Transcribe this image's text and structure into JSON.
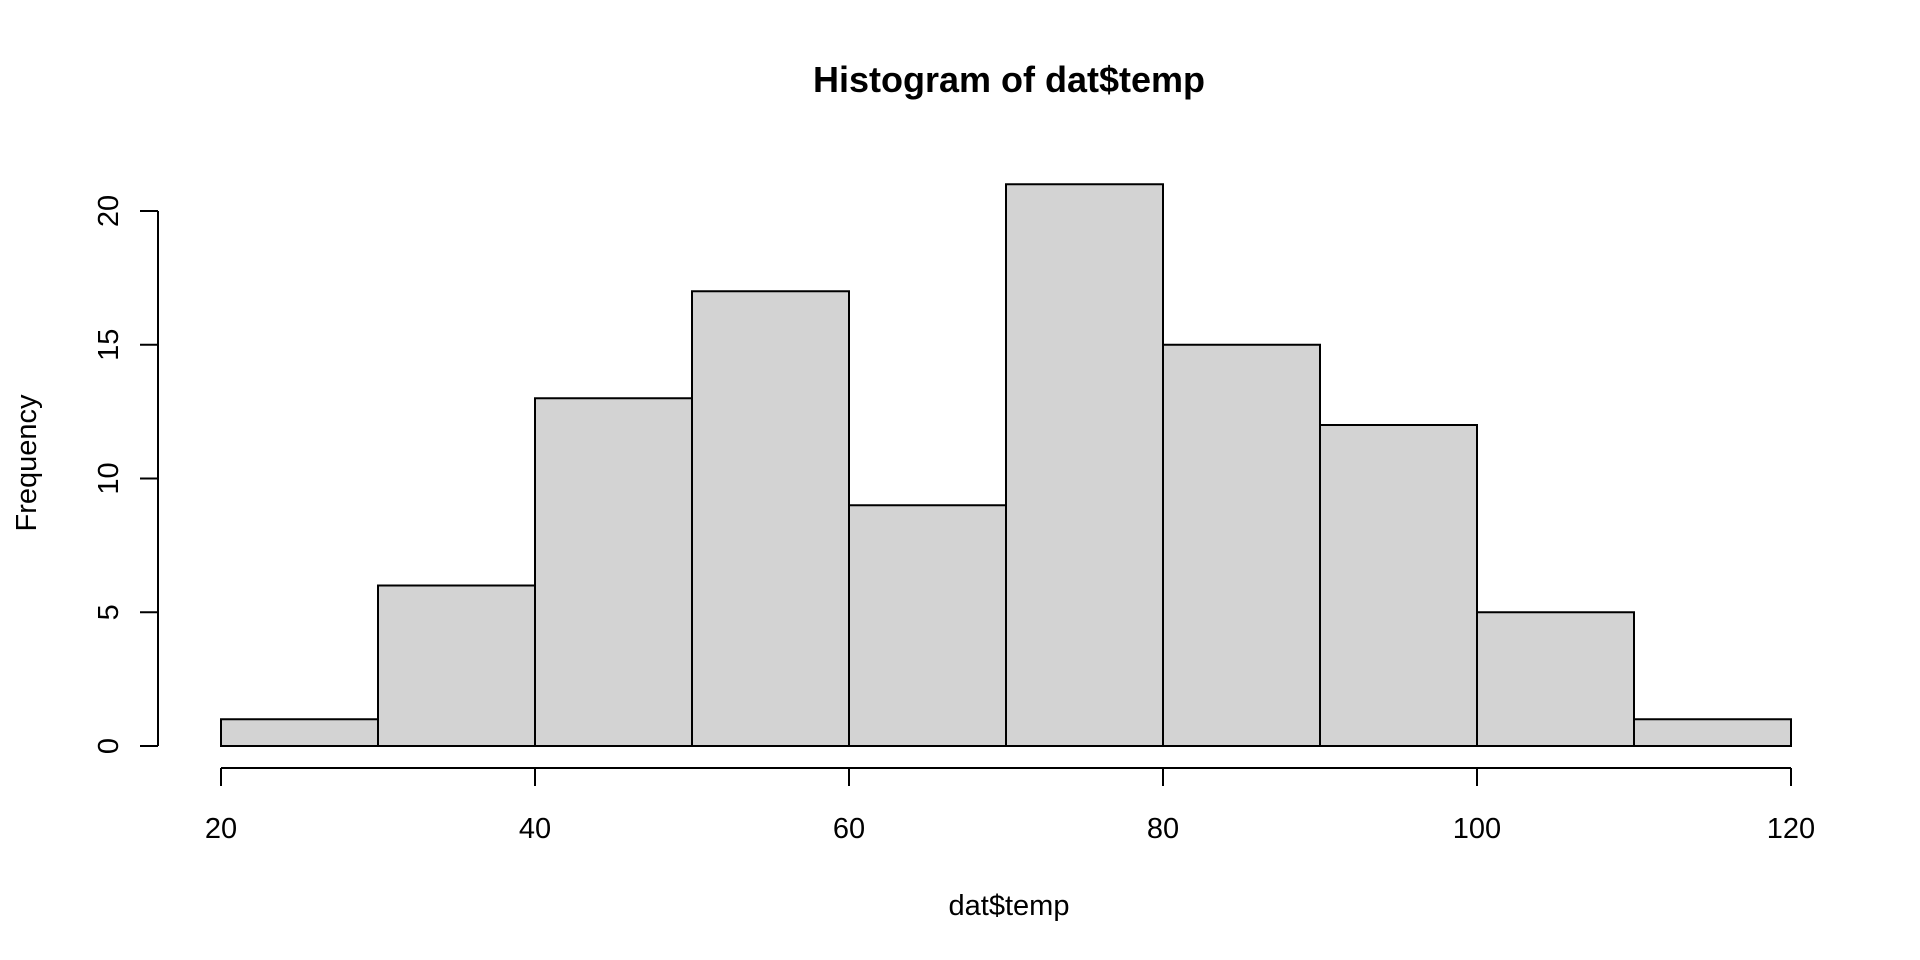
{
  "chart_data": {
    "type": "bar",
    "title": "Histogram of dat$temp",
    "xlabel": "dat$temp",
    "ylabel": "Frequency",
    "bins": [
      {
        "start": 20,
        "end": 30,
        "count": 1
      },
      {
        "start": 30,
        "end": 40,
        "count": 6
      },
      {
        "start": 40,
        "end": 50,
        "count": 13
      },
      {
        "start": 50,
        "end": 60,
        "count": 17
      },
      {
        "start": 60,
        "end": 70,
        "count": 9
      },
      {
        "start": 70,
        "end": 80,
        "count": 21
      },
      {
        "start": 80,
        "end": 90,
        "count": 15
      },
      {
        "start": 90,
        "end": 100,
        "count": 12
      },
      {
        "start": 100,
        "end": 110,
        "count": 5
      },
      {
        "start": 110,
        "end": 120,
        "count": 1
      }
    ],
    "x_ticks": [
      20,
      40,
      60,
      80,
      100,
      120
    ],
    "y_ticks": [
      0,
      5,
      10,
      15,
      20
    ],
    "xlim": [
      20,
      120
    ],
    "ylim": [
      0,
      21
    ],
    "bar_fill": "#d3d3d3",
    "bar_stroke": "#000000",
    "grid": false,
    "legend": "none"
  }
}
